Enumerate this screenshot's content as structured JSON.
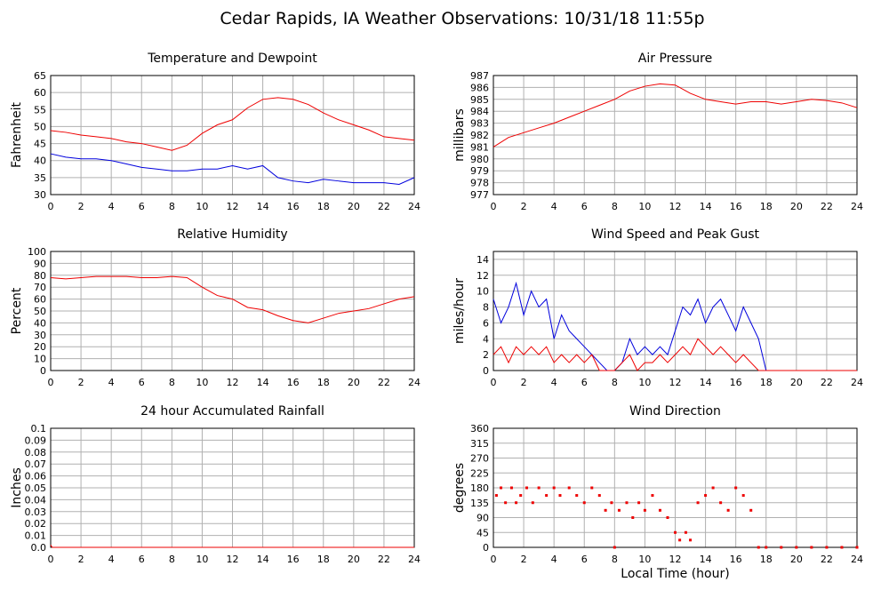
{
  "title": "Cedar Rapids, IA Weather Observations: 10/31/18 11:55p",
  "chart_data": [
    {
      "type": "line",
      "title": "Temperature and Dewpoint",
      "ylabel": "Fahrenheit",
      "grid": true,
      "xlim": [
        0,
        24
      ],
      "xticks": [
        0,
        2,
        4,
        6,
        8,
        10,
        12,
        14,
        16,
        18,
        20,
        22,
        24
      ],
      "ylim": [
        30,
        65
      ],
      "yticks": [
        30,
        35,
        40,
        45,
        50,
        55,
        60,
        65
      ],
      "x": [
        0,
        1,
        2,
        3,
        4,
        5,
        6,
        7,
        8,
        9,
        10,
        11,
        12,
        13,
        14,
        15,
        16,
        17,
        18,
        19,
        20,
        21,
        22,
        23,
        24
      ],
      "series": [
        {
          "color": "#ee0000",
          "values": [
            48.8,
            48.3,
            47.5,
            47,
            46.5,
            45.5,
            45,
            44,
            43,
            44.5,
            48,
            50.5,
            52,
            55.5,
            58,
            58.5,
            58,
            56.5,
            54,
            52,
            50.5,
            49,
            47,
            46.5,
            46
          ]
        },
        {
          "color": "#0000dd",
          "values": [
            42,
            41,
            40.5,
            40.5,
            40,
            39,
            38,
            37.5,
            37,
            37,
            37.5,
            37.5,
            38.5,
            37.5,
            38.5,
            35,
            34,
            33.5,
            34.5,
            34,
            33.5,
            33.5,
            33.5,
            33,
            35
          ]
        }
      ]
    },
    {
      "type": "line",
      "title": "Air Pressure",
      "ylabel": "millibars",
      "grid": true,
      "xlim": [
        0,
        24
      ],
      "xticks": [
        0,
        2,
        4,
        6,
        8,
        10,
        12,
        14,
        16,
        18,
        20,
        22,
        24
      ],
      "ylim": [
        977,
        987
      ],
      "yticks": [
        977,
        978,
        979,
        980,
        981,
        982,
        983,
        984,
        985,
        986,
        987
      ],
      "x": [
        0,
        1,
        2,
        3,
        4,
        5,
        6,
        7,
        8,
        9,
        10,
        11,
        12,
        13,
        14,
        15,
        16,
        17,
        18,
        19,
        20,
        21,
        22,
        23,
        24
      ],
      "series": [
        {
          "color": "#ee0000",
          "values": [
            981,
            981.8,
            982.2,
            982.6,
            983,
            983.5,
            984,
            984.5,
            985,
            985.7,
            986.1,
            986.3,
            986.2,
            985.5,
            985,
            984.8,
            984.6,
            984.8,
            984.8,
            984.6,
            984.8,
            985,
            984.9,
            984.7,
            984.3
          ]
        }
      ]
    },
    {
      "type": "line",
      "title": "Relative Humidity",
      "ylabel": "Percent",
      "grid": true,
      "xlim": [
        0,
        24
      ],
      "xticks": [
        0,
        2,
        4,
        6,
        8,
        10,
        12,
        14,
        16,
        18,
        20,
        22,
        24
      ],
      "ylim": [
        0,
        100
      ],
      "yticks": [
        0,
        10,
        20,
        30,
        40,
        50,
        60,
        70,
        80,
        90,
        100
      ],
      "x": [
        0,
        1,
        2,
        3,
        4,
        5,
        6,
        7,
        8,
        9,
        10,
        11,
        12,
        13,
        14,
        15,
        16,
        17,
        18,
        19,
        20,
        21,
        22,
        23,
        24
      ],
      "series": [
        {
          "color": "#ee0000",
          "values": [
            78,
            77,
            78,
            79,
            79,
            79,
            78,
            78,
            79,
            78,
            70,
            63,
            60,
            53,
            51,
            46,
            42,
            40,
            44,
            48,
            50,
            52,
            56,
            60,
            62
          ]
        }
      ]
    },
    {
      "type": "line",
      "title": "Wind Speed and Peak Gust",
      "ylabel": "miles/hour",
      "grid": true,
      "xlim": [
        0,
        24
      ],
      "xticks": [
        0,
        2,
        4,
        6,
        8,
        10,
        12,
        14,
        16,
        18,
        20,
        22,
        24
      ],
      "ylim": [
        0,
        15
      ],
      "yticks": [
        0,
        2,
        4,
        6,
        8,
        10,
        12,
        14
      ],
      "x": [
        0,
        0.5,
        1,
        1.5,
        2,
        2.5,
        3,
        3.5,
        4,
        4.5,
        5,
        5.5,
        6,
        6.5,
        7,
        7.5,
        8,
        8.5,
        9,
        9.5,
        10,
        10.5,
        11,
        11.5,
        12,
        12.5,
        13,
        13.5,
        14,
        14.5,
        15,
        15.5,
        16,
        16.5,
        17,
        17.5,
        18,
        18.5,
        19,
        19.5,
        20,
        20.5,
        21,
        21.5,
        22,
        22.5,
        23,
        23.5,
        24
      ],
      "series": [
        {
          "color": "#0000dd",
          "values": [
            9,
            6,
            8,
            11,
            7,
            10,
            8,
            9,
            4,
            7,
            5,
            4,
            3,
            2,
            1,
            0,
            0,
            1,
            4,
            2,
            3,
            2,
            3,
            2,
            5,
            8,
            7,
            9,
            6,
            8,
            9,
            7,
            5,
            8,
            6,
            4,
            0,
            0,
            0,
            0,
            0,
            0,
            0,
            0,
            0,
            0,
            0,
            0,
            0
          ]
        },
        {
          "color": "#ee0000",
          "values": [
            2,
            3,
            1,
            3,
            2,
            3,
            2,
            3,
            1,
            2,
            1,
            2,
            1,
            2,
            0,
            0,
            0,
            1,
            2,
            0,
            1,
            1,
            2,
            1,
            2,
            3,
            2,
            4,
            3,
            2,
            3,
            2,
            1,
            2,
            1,
            0,
            0,
            0,
            0,
            0,
            0,
            0,
            0,
            0,
            0,
            0,
            0,
            0,
            0
          ]
        }
      ]
    },
    {
      "type": "line",
      "title": "24 hour Accumulated Rainfall",
      "ylabel": "Inches",
      "grid": true,
      "xlim": [
        0,
        24
      ],
      "xticks": [
        0,
        2,
        4,
        6,
        8,
        10,
        12,
        14,
        16,
        18,
        20,
        22,
        24
      ],
      "ylim": [
        0,
        0.1
      ],
      "yticks": [
        {
          "value": 0,
          "label": "0.0"
        },
        0.01,
        0.02,
        0.03,
        0.04,
        0.05,
        0.06,
        0.07,
        0.08,
        0.09,
        0.1
      ],
      "x": [
        0,
        0.1,
        24
      ],
      "series": [
        {
          "color": "#ee0000",
          "values": [
            0.002,
            0,
            0
          ]
        }
      ]
    },
    {
      "type": "scatter",
      "title": "Wind Direction",
      "ylabel": "degrees",
      "xlabel": "Local Time (hour)",
      "grid": true,
      "xlim": [
        0,
        24
      ],
      "xticks": [
        0,
        2,
        4,
        6,
        8,
        10,
        12,
        14,
        16,
        18,
        20,
        22,
        24
      ],
      "ylim": [
        0,
        360
      ],
      "yticks": [
        0,
        45,
        90,
        135,
        180,
        225,
        270,
        315,
        360
      ],
      "x": [
        0.2,
        0.5,
        0.8,
        1.2,
        1.5,
        1.8,
        2.2,
        2.6,
        3,
        3.5,
        4,
        4.4,
        5,
        5.5,
        6,
        6.5,
        7,
        7.4,
        7.8,
        8,
        8.3,
        8.8,
        9.2,
        9.6,
        10,
        10.5,
        11,
        11.5,
        12,
        12.3,
        12.7,
        13,
        13.5,
        14,
        14.5,
        15,
        15.5,
        16,
        16.5,
        17,
        17.5,
        18,
        19,
        20,
        21,
        22,
        23,
        24
      ],
      "series": [
        {
          "color": "#ee0000",
          "values": [
            157,
            180,
            135,
            180,
            135,
            157,
            180,
            135,
            180,
            157,
            180,
            157,
            180,
            157,
            135,
            180,
            157,
            112,
            135,
            0,
            112,
            135,
            90,
            135,
            112,
            157,
            112,
            90,
            45,
            22,
            45,
            22,
            135,
            157,
            180,
            135,
            112,
            180,
            157,
            112,
            0,
            0,
            0,
            0,
            0,
            0,
            0,
            0
          ]
        }
      ]
    }
  ]
}
